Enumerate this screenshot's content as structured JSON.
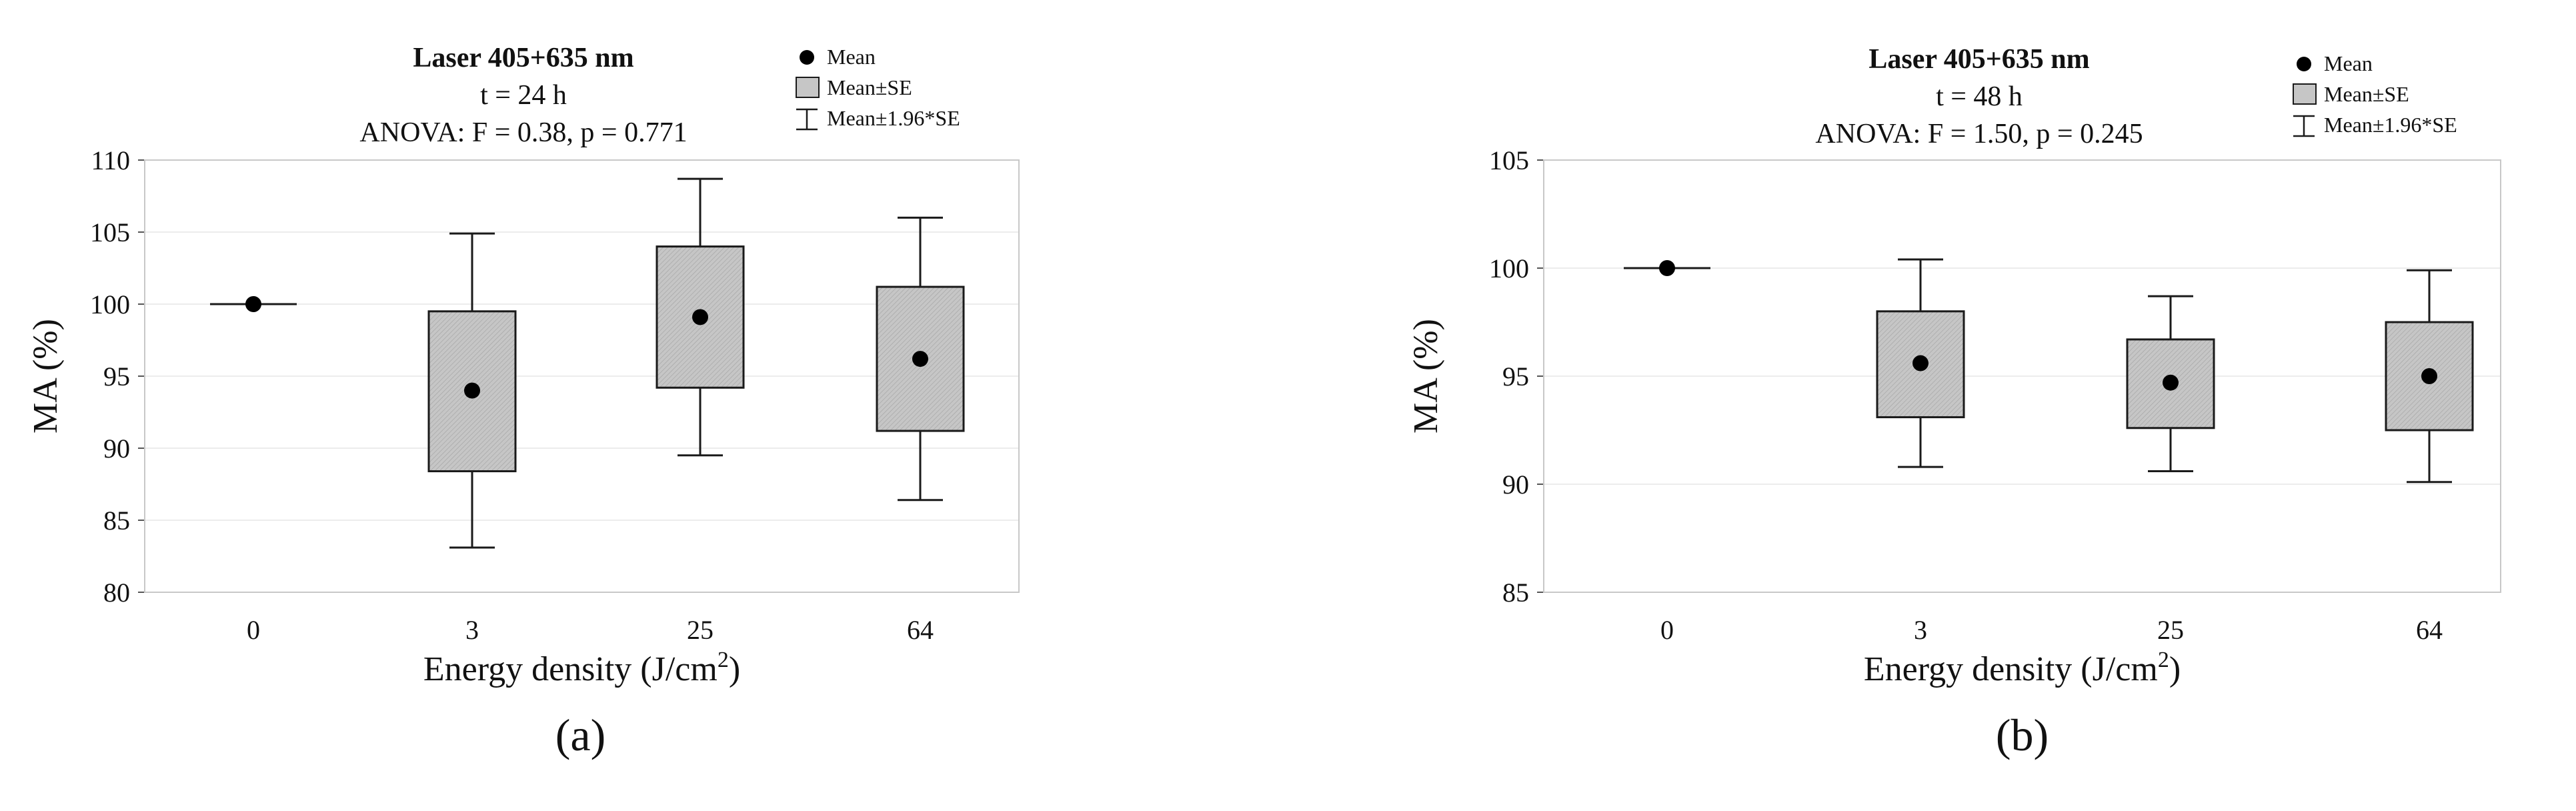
{
  "chart_data": [
    {
      "type": "box",
      "panel_label": "(a)",
      "title": "Laser 405+635 nm",
      "subtitle": "t = 24 h",
      "annotation": "ANOVA: F = 0.38, p = 0.771",
      "xlabel": "Energy density (J/cm",
      "xlabel_sup": "2",
      "xlabel_tail": ")",
      "ylabel": "MA (%)",
      "ylim": [
        80,
        110
      ],
      "yticks": [
        80,
        85,
        90,
        95,
        100,
        105,
        110
      ],
      "grid": true,
      "legend_position": "top-right",
      "legend": [
        "Mean",
        "Mean±SE",
        "Mean±1.96*SE"
      ],
      "categories": [
        "0",
        "3",
        "25",
        "64"
      ],
      "series": [
        {
          "mean": [
            100,
            94.0,
            99.1,
            96.2
          ],
          "se_low": [
            100,
            88.4,
            94.2,
            91.2
          ],
          "se_high": [
            100,
            99.5,
            104.0,
            101.2
          ],
          "ci_low": [
            100,
            83.1,
            89.5,
            86.4
          ],
          "ci_high": [
            100,
            104.9,
            108.7,
            106.0
          ]
        }
      ]
    },
    {
      "type": "box",
      "panel_label": "(b)",
      "title": "Laser 405+635 nm",
      "subtitle": "t = 48 h",
      "annotation": "ANOVA: F = 1.50, p = 0.245",
      "xlabel": "Energy density (J/cm",
      "xlabel_sup": "2",
      "xlabel_tail": ")",
      "ylabel": "MA (%)",
      "ylim": [
        85,
        105
      ],
      "yticks": [
        85,
        90,
        95,
        100,
        105
      ],
      "grid": true,
      "legend_position": "top-right",
      "legend": [
        "Mean",
        "Mean±SE",
        "Mean±1.96*SE"
      ],
      "categories": [
        "0",
        "3",
        "25",
        "64"
      ],
      "series": [
        {
          "mean": [
            100,
            95.6,
            94.7,
            95.0
          ],
          "se_low": [
            100,
            93.1,
            92.6,
            92.5
          ],
          "se_high": [
            100,
            98.0,
            96.7,
            97.5
          ],
          "ci_low": [
            100,
            90.8,
            90.6,
            90.1
          ],
          "ci_high": [
            100,
            100.4,
            98.7,
            99.9
          ]
        }
      ]
    }
  ]
}
